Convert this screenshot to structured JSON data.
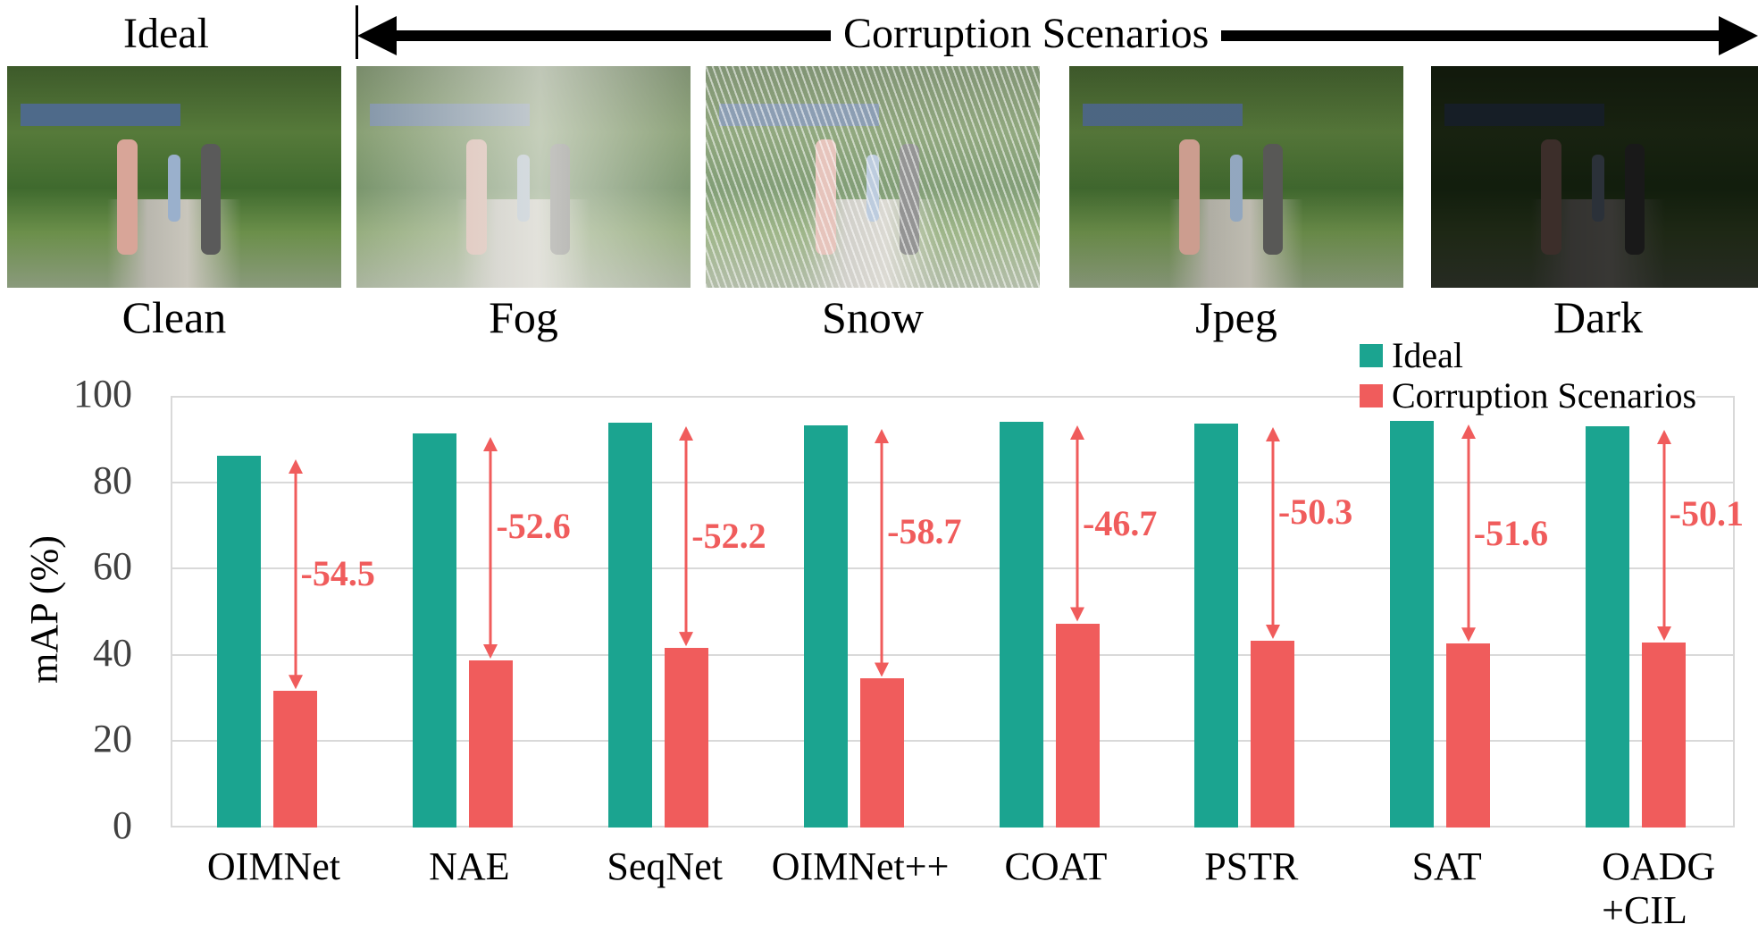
{
  "header": {
    "ideal_label": "Ideal",
    "corruption_label": "Corruption Scenarios"
  },
  "images": [
    {
      "caption": "Clean",
      "style": "clean"
    },
    {
      "caption": "Fog",
      "style": "fog"
    },
    {
      "caption": "Snow",
      "style": "snow"
    },
    {
      "caption": "Jpeg",
      "style": "jpeg"
    },
    {
      "caption": "Dark",
      "style": "dark"
    }
  ],
  "colors": {
    "ideal": "#1ba490",
    "corruption": "#f05c5c",
    "grid": "#d9d9d9",
    "tick": "#404040"
  },
  "legend": {
    "items": [
      {
        "label": "Ideal",
        "color": "#1ba490"
      },
      {
        "label": "Corruption Scenarios",
        "color": "#f05c5c"
      }
    ]
  },
  "axis": {
    "ylabel": "mAP (%)",
    "yticks": [
      "0",
      "20",
      "40",
      "60",
      "80",
      "100"
    ]
  },
  "chart_data": {
    "type": "bar",
    "title": "",
    "xlabel": "",
    "ylabel": "mAP (%)",
    "ylim": [
      0,
      100
    ],
    "grid": true,
    "legend_position": "top-right",
    "categories": [
      "OIMNet",
      "NAE",
      "SeqNet",
      "OIMNet++",
      "COAT",
      "PSTR",
      "SAT",
      "OADG\n+CIL"
    ],
    "series": [
      {
        "name": "Ideal",
        "color": "#1ba490",
        "values": [
          86.2,
          91.3,
          93.8,
          93.2,
          94.0,
          93.5,
          94.2,
          92.9
        ]
      },
      {
        "name": "Corruption Scenarios",
        "color": "#f05c5c",
        "values": [
          31.7,
          38.7,
          41.6,
          34.5,
          47.3,
          43.2,
          42.6,
          42.8
        ]
      }
    ],
    "annotations": [
      "-54.5",
      "-52.6",
      "-52.2",
      "-58.7",
      "-46.7",
      "-50.3",
      "-51.6",
      "-50.1"
    ]
  }
}
